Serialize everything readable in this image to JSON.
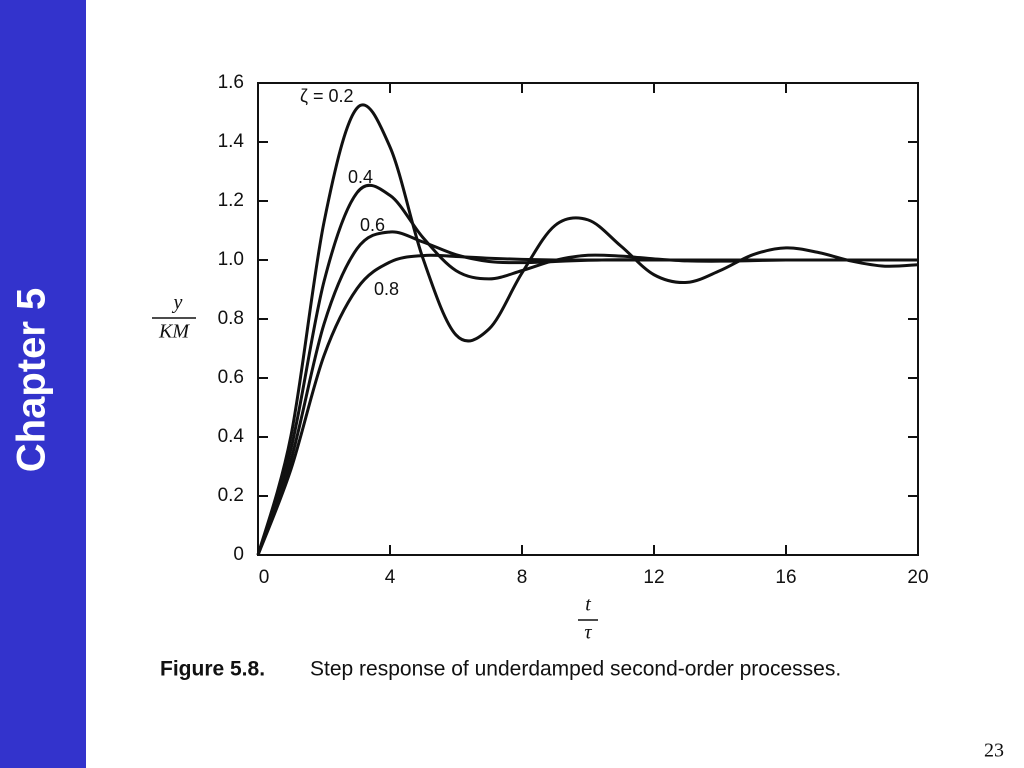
{
  "sidebar": "Chapter 5",
  "page_number": "23",
  "chart_data": {
    "type": "line",
    "caption_label": "Figure 5.8.",
    "caption": "Step response of underdamped second-order processes.",
    "y_label_top": "y",
    "y_label_bottom": "KM",
    "x_label_top": "t",
    "x_label_bottom": "τ",
    "x": [
      0,
      1,
      2,
      3,
      4,
      5,
      6,
      7,
      8,
      9,
      10,
      11,
      12,
      13,
      14,
      15,
      16,
      17,
      18,
      19,
      20
    ],
    "series": [
      {
        "name": "ζ = 0.2",
        "color": "#111111",
        "values": [
          0,
          0.405,
          1.128,
          1.515,
          1.383,
          1.005,
          0.746,
          0.766,
          0.956,
          1.117,
          1.136,
          1.047,
          0.95,
          0.924,
          0.964,
          1.018,
          1.041,
          1.025,
          0.996,
          0.979,
          0.984
        ]
      },
      {
        "name": "0.4",
        "color": "#111111",
        "values": [
          0,
          0.36,
          0.927,
          1.228,
          1.219,
          1.076,
          0.964,
          0.936,
          0.964,
          0.999,
          1.016,
          1.013,
          1.004,
          0.997,
          0.996,
          0.998,
          1,
          1,
          1,
          1,
          1
        ]
      },
      {
        "name": "0.6",
        "color": "#111111",
        "values": [
          0,
          0.322,
          0.783,
          1.038,
          1.095,
          1.061,
          1.018,
          0.995,
          0.991,
          0.995,
          0.999,
          1.001,
          1,
          1,
          1,
          1,
          1,
          1,
          1,
          1,
          1
        ]
      },
      {
        "name": "0.8",
        "color": "#111111",
        "values": [
          0,
          0.291,
          0.676,
          0.903,
          0.993,
          1.015,
          1.012,
          1.006,
          1.002,
          1,
          1,
          1,
          1,
          1,
          1,
          1,
          1,
          1,
          1,
          1,
          1
        ]
      }
    ],
    "xlim": [
      0,
      20
    ],
    "xticks": [
      0,
      4,
      8,
      12,
      16,
      20
    ],
    "ylim": [
      0,
      1.6
    ],
    "yticks": [
      0,
      0.2,
      0.4,
      0.6,
      0.8,
      {
        "value": 1,
        "label": "1.0"
      },
      1.2,
      1.4,
      1.6
    ]
  }
}
